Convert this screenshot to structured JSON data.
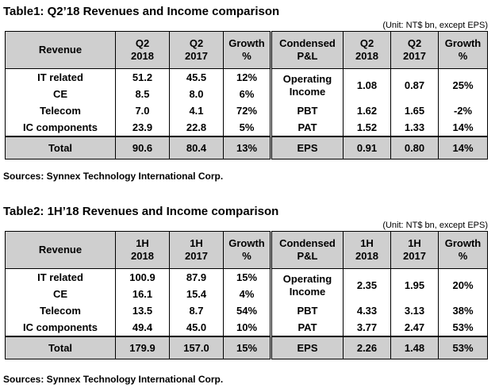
{
  "tables": [
    {
      "title": "Table1: Q2’18 Revenues and Income comparison",
      "unit": "(Unit: NT$ bn, except EPS)",
      "rev_head": [
        "Revenue",
        "Q2\n2018",
        "Q2\n2017",
        "Growth\n%"
      ],
      "pl_head": [
        "Condensed\nP&L",
        "Q2\n2018",
        "Q2\n2017",
        "Growth\n%"
      ],
      "rev_rows": [
        [
          "IT related",
          "51.2",
          "45.5",
          "12%"
        ],
        [
          "CE",
          "8.5",
          "8.0",
          "6%"
        ],
        [
          "Telecom",
          "7.0",
          "4.1",
          "72%"
        ],
        [
          "IC components",
          "23.9",
          "22.8",
          "5%"
        ]
      ],
      "pl_rows": [
        [
          "Operating\nIncome",
          "1.08",
          "0.87",
          "25%"
        ],
        [
          "PBT",
          "1.62",
          "1.65",
          "-2%"
        ],
        [
          "PAT",
          "1.52",
          "1.33",
          "14%"
        ]
      ],
      "rev_total": [
        "Total",
        "90.6",
        "80.4",
        "13%"
      ],
      "pl_total": [
        "EPS",
        "0.91",
        "0.80",
        "14%"
      ],
      "source": "Sources: Synnex Technology International Corp."
    },
    {
      "title": "Table2: 1H’18 Revenues and Income comparison",
      "unit": "(Unit: NT$ bn, except EPS)",
      "rev_head": [
        "Revenue",
        "1H\n2018",
        "1H\n2017",
        "Growth\n%"
      ],
      "pl_head": [
        "Condensed\nP&L",
        "1H\n2018",
        "1H\n2017",
        "Growth\n%"
      ],
      "rev_rows": [
        [
          "IT related",
          "100.9",
          "87.9",
          "15%"
        ],
        [
          "CE",
          "16.1",
          "15.4",
          "4%"
        ],
        [
          "Telecom",
          "13.5",
          "8.7",
          "54%"
        ],
        [
          "IC components",
          "49.4",
          "45.0",
          "10%"
        ]
      ],
      "pl_rows": [
        [
          "Operating\nIncome",
          "2.35",
          "1.95",
          "20%"
        ],
        [
          "PBT",
          "4.33",
          "3.13",
          "38%"
        ],
        [
          "PAT",
          "3.77",
          "2.47",
          "53%"
        ]
      ],
      "rev_total": [
        "Total",
        "179.9",
        "157.0",
        "15%"
      ],
      "pl_total": [
        "EPS",
        "2.26",
        "1.48",
        "53%"
      ],
      "source": "Sources: Synnex Technology International Corp."
    }
  ]
}
